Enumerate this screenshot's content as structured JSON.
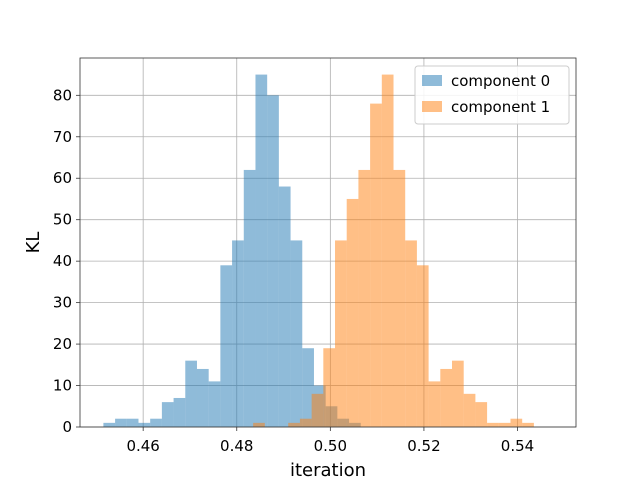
{
  "chart_data": {
    "type": "histogram",
    "title": "",
    "xlabel": "iteration",
    "ylabel": "KL",
    "xlim": [
      0.4465,
      0.5525
    ],
    "ylim": [
      0,
      89
    ],
    "grid": true,
    "legend_position": "top-right",
    "xticks": [
      0.46,
      0.48,
      0.5,
      0.52,
      0.54
    ],
    "xtick_labels": [
      "0.46",
      "0.48",
      "0.50",
      "0.52",
      "0.54"
    ],
    "yticks": [
      0,
      10,
      20,
      30,
      40,
      50,
      60,
      70,
      80
    ],
    "ytick_labels": [
      "0",
      "10",
      "20",
      "30",
      "40",
      "50",
      "60",
      "70",
      "80"
    ],
    "series": [
      {
        "name": "component 0",
        "color": "#1f77b4",
        "opacity": 0.5,
        "bin_start": 0.4515,
        "bin_width": 0.0025,
        "counts": [
          1,
          2,
          2,
          1,
          2,
          6,
          7,
          16,
          14,
          11,
          39,
          45,
          62,
          85,
          80,
          58,
          45,
          19,
          10,
          5,
          2,
          1
        ]
      },
      {
        "name": "component 1",
        "color": "#ff7f0e",
        "opacity": 0.5,
        "bin_start": 0.4835,
        "bin_width": 0.0025,
        "counts": [
          1,
          0,
          0,
          1,
          2,
          8,
          19,
          45,
          55,
          62,
          78,
          85,
          62,
          45,
          39,
          11,
          14,
          16,
          8,
          6,
          1,
          1,
          2,
          1
        ]
      }
    ]
  }
}
